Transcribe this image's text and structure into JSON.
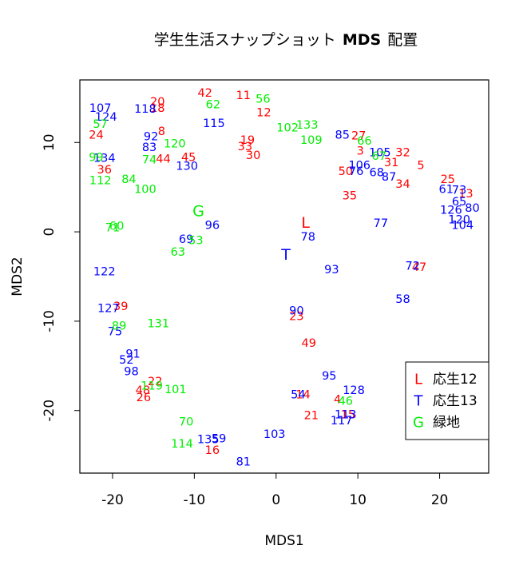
{
  "chart_data": {
    "type": "scatter",
    "title_prefix": "学生生活スナップショット",
    "title_bold": "MDS",
    "title_suffix": "配置",
    "xlabel": "MDS1",
    "ylabel": "MDS2",
    "xlim": [
      -24,
      26
    ],
    "ylim": [
      -27,
      17
    ],
    "xticks": [
      -20,
      -10,
      0,
      10,
      20
    ],
    "yticks": [
      -20,
      -10,
      0,
      10
    ],
    "colors": {
      "L": "#ff0000",
      "T": "#0000ff",
      "G": "#00ee00"
    },
    "centroids": [
      {
        "label": "L",
        "group": "L",
        "x": 3.6,
        "y": 1.0
      },
      {
        "label": "T",
        "group": "T",
        "x": 1.2,
        "y": -2.6
      },
      {
        "label": "G",
        "group": "G",
        "x": -9.5,
        "y": 2.3
      }
    ],
    "legend": {
      "position": "bottom-right",
      "items": [
        {
          "symbol": "L",
          "text": "応生12",
          "group": "L"
        },
        {
          "symbol": "T",
          "text": "応生13",
          "group": "T"
        },
        {
          "symbol": "G",
          "text": "緑地",
          "group": "G"
        }
      ]
    },
    "series": [
      {
        "group": "L",
        "points": [
          {
            "label": "42",
            "x": -8.7,
            "y": 15.5
          },
          {
            "label": "11",
            "x": -4.0,
            "y": 15.2
          },
          {
            "label": "20",
            "x": -14.5,
            "y": 14.5
          },
          {
            "label": "18",
            "x": -14.5,
            "y": 13.8
          },
          {
            "label": "12",
            "x": -1.5,
            "y": 13.3
          },
          {
            "label": "8",
            "x": -14.0,
            "y": 11.2
          },
          {
            "label": "19",
            "x": -3.5,
            "y": 10.2
          },
          {
            "label": "33",
            "x": -3.8,
            "y": 9.5
          },
          {
            "label": "30",
            "x": -2.8,
            "y": 8.5
          },
          {
            "label": "44",
            "x": -13.8,
            "y": 8.1
          },
          {
            "label": "45",
            "x": -10.7,
            "y": 8.3
          },
          {
            "label": "24",
            "x": -22.0,
            "y": 10.8
          },
          {
            "label": "36",
            "x": -21.0,
            "y": 6.9
          },
          {
            "label": "27",
            "x": 10.1,
            "y": 10.7
          },
          {
            "label": "3",
            "x": 10.3,
            "y": 9.0
          },
          {
            "label": "32",
            "x": 15.5,
            "y": 8.8
          },
          {
            "label": "31",
            "x": 14.1,
            "y": 7.7
          },
          {
            "label": "5",
            "x": 17.7,
            "y": 7.4
          },
          {
            "label": "50",
            "x": 8.5,
            "y": 6.7
          },
          {
            "label": "34",
            "x": 15.5,
            "y": 5.3
          },
          {
            "label": "25",
            "x": 21.0,
            "y": 5.8
          },
          {
            "label": "13",
            "x": 23.2,
            "y": 4.2
          },
          {
            "label": "35",
            "x": 9.0,
            "y": 4.0
          },
          {
            "label": "39",
            "x": -19.0,
            "y": -8.4
          },
          {
            "label": "47",
            "x": 17.5,
            "y": -4.0
          },
          {
            "label": "23",
            "x": 2.5,
            "y": -9.5
          },
          {
            "label": "49",
            "x": 4.0,
            "y": -12.5
          },
          {
            "label": "22",
            "x": -14.8,
            "y": -16.8
          },
          {
            "label": "48",
            "x": -16.3,
            "y": -17.8
          },
          {
            "label": "26",
            "x": -16.2,
            "y": -18.6
          },
          {
            "label": "4",
            "x": 7.5,
            "y": -18.8
          },
          {
            "label": "14",
            "x": 3.3,
            "y": -18.3
          },
          {
            "label": "21",
            "x": 4.3,
            "y": -20.6
          },
          {
            "label": "15",
            "x": 8.8,
            "y": -20.5
          },
          {
            "label": "16",
            "x": -7.8,
            "y": -24.5
          }
        ]
      },
      {
        "group": "T",
        "points": [
          {
            "label": "107",
            "x": -21.5,
            "y": 13.8
          },
          {
            "label": "124",
            "x": -20.8,
            "y": 12.8
          },
          {
            "label": "118",
            "x": -16.0,
            "y": 13.7
          },
          {
            "label": "115",
            "x": -7.6,
            "y": 12.1
          },
          {
            "label": "92",
            "x": -15.3,
            "y": 10.6
          },
          {
            "label": "83",
            "x": -15.5,
            "y": 9.4
          },
          {
            "label": "134",
            "x": -21.0,
            "y": 8.2
          },
          {
            "label": "130",
            "x": -10.9,
            "y": 7.3
          },
          {
            "label": "85",
            "x": 8.1,
            "y": 10.8
          },
          {
            "label": "105",
            "x": 12.7,
            "y": 8.8
          },
          {
            "label": "106",
            "x": 10.2,
            "y": 7.4
          },
          {
            "label": "76",
            "x": 9.8,
            "y": 6.7
          },
          {
            "label": "68",
            "x": 12.3,
            "y": 6.6
          },
          {
            "label": "87",
            "x": 13.8,
            "y": 6.1
          },
          {
            "label": "61",
            "x": 20.8,
            "y": 4.7
          },
          {
            "label": "73",
            "x": 22.4,
            "y": 4.6
          },
          {
            "label": "65",
            "x": 22.4,
            "y": 3.3
          },
          {
            "label": "126",
            "x": 21.4,
            "y": 2.4
          },
          {
            "label": "80",
            "x": 24.0,
            "y": 2.6
          },
          {
            "label": "120",
            "x": 22.4,
            "y": 1.3
          },
          {
            "label": "104",
            "x": 22.8,
            "y": 0.7
          },
          {
            "label": "77",
            "x": 12.8,
            "y": 0.9
          },
          {
            "label": "96",
            "x": -7.8,
            "y": 0.7
          },
          {
            "label": "78",
            "x": 3.9,
            "y": -0.6
          },
          {
            "label": "69",
            "x": -11.0,
            "y": -0.9
          },
          {
            "label": "122",
            "x": -21.0,
            "y": -4.5
          },
          {
            "label": "93",
            "x": 6.8,
            "y": -4.3
          },
          {
            "label": "72",
            "x": 16.7,
            "y": -3.9
          },
          {
            "label": "58",
            "x": 15.5,
            "y": -7.6
          },
          {
            "label": "127",
            "x": -20.5,
            "y": -8.6
          },
          {
            "label": "90",
            "x": 2.5,
            "y": -8.9
          },
          {
            "label": "75",
            "x": -19.7,
            "y": -11.2
          },
          {
            "label": "91",
            "x": -17.5,
            "y": -13.7
          },
          {
            "label": "52",
            "x": -18.3,
            "y": -14.4
          },
          {
            "label": "98",
            "x": -17.7,
            "y": -15.7
          },
          {
            "label": "95",
            "x": 6.5,
            "y": -16.2
          },
          {
            "label": "128",
            "x": 9.5,
            "y": -17.8
          },
          {
            "label": "54",
            "x": 2.7,
            "y": -18.3
          },
          {
            "label": "113",
            "x": 8.5,
            "y": -20.5
          },
          {
            "label": "117",
            "x": 8.0,
            "y": -21.2
          },
          {
            "label": "103",
            "x": -0.2,
            "y": -22.7
          },
          {
            "label": "135",
            "x": -8.3,
            "y": -23.3
          },
          {
            "label": "59",
            "x": -7.0,
            "y": -23.2
          },
          {
            "label": "81",
            "x": -4.0,
            "y": -25.8
          }
        ]
      },
      {
        "group": "G",
        "points": [
          {
            "label": "62",
            "x": -7.7,
            "y": 14.2
          },
          {
            "label": "56",
            "x": -1.6,
            "y": 14.8
          },
          {
            "label": "102",
            "x": 1.4,
            "y": 11.6
          },
          {
            "label": "133",
            "x": 3.8,
            "y": 11.9
          },
          {
            "label": "109",
            "x": 4.3,
            "y": 10.2
          },
          {
            "label": "57",
            "x": -21.5,
            "y": 12.0
          },
          {
            "label": "120",
            "x": -12.4,
            "y": 9.8
          },
          {
            "label": "74",
            "x": -15.5,
            "y": 8.0
          },
          {
            "label": "99",
            "x": -22.0,
            "y": 8.3
          },
          {
            "label": "112",
            "x": -21.5,
            "y": 5.7
          },
          {
            "label": "84",
            "x": -18.0,
            "y": 5.8
          },
          {
            "label": "100",
            "x": -16.0,
            "y": 4.7
          },
          {
            "label": "66",
            "x": 10.8,
            "y": 10.1
          },
          {
            "label": "67",
            "x": 12.6,
            "y": 8.4
          },
          {
            "label": "71",
            "x": -20.0,
            "y": 0.4
          },
          {
            "label": "60",
            "x": -19.5,
            "y": 0.6
          },
          {
            "label": "53",
            "x": -9.8,
            "y": -1.0
          },
          {
            "label": "63",
            "x": -12.0,
            "y": -2.3
          },
          {
            "label": "89",
            "x": -19.2,
            "y": -10.6
          },
          {
            "label": "131",
            "x": -14.4,
            "y": -10.3
          },
          {
            "label": "101",
            "x": -12.3,
            "y": -17.7
          },
          {
            "label": "119",
            "x": -15.2,
            "y": -17.3
          },
          {
            "label": "46",
            "x": 8.5,
            "y": -19.0
          },
          {
            "label": "70",
            "x": -11.0,
            "y": -21.3
          },
          {
            "label": "114",
            "x": -11.5,
            "y": -23.8
          }
        ]
      }
    ]
  }
}
